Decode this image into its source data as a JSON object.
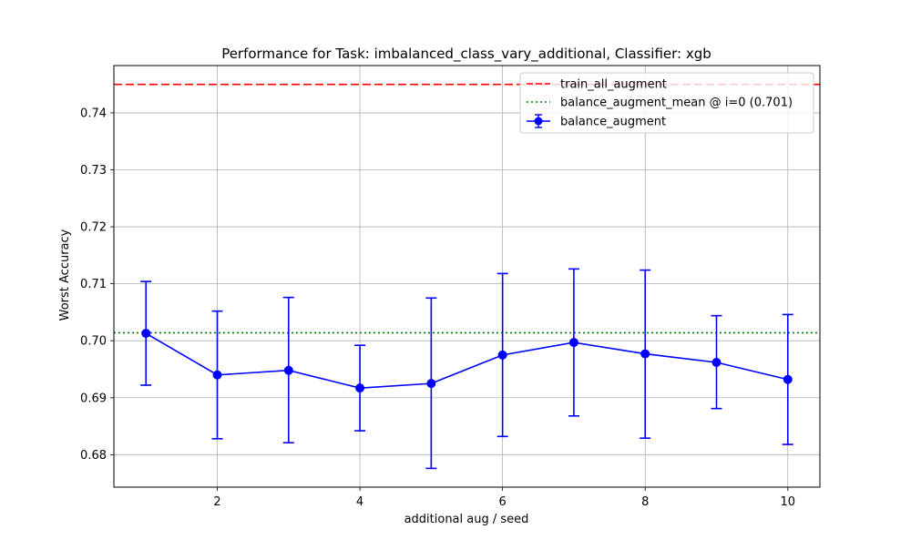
{
  "chart_data": {
    "type": "line",
    "title": "Performance for Task: imbalanced_class_vary_additional, Classifier: xgb",
    "xlabel": "additional aug / seed",
    "ylabel": "Worst Accuracy",
    "xlim": [
      0.55,
      10.45
    ],
    "ylim": [
      0.6743,
      0.7483
    ],
    "x_ticks": [
      2,
      4,
      6,
      8,
      10
    ],
    "x_tick_labels": [
      "2",
      "4",
      "6",
      "8",
      "10"
    ],
    "y_ticks": [
      0.68,
      0.69,
      0.7,
      0.71,
      0.72,
      0.73,
      0.74
    ],
    "y_tick_labels": [
      "0.68",
      "0.69",
      "0.70",
      "0.71",
      "0.72",
      "0.73",
      "0.74"
    ],
    "grid": true,
    "legend_position": "top-right",
    "series": [
      {
        "name": "balance_augment",
        "color": "#0000ff",
        "marker": "circle",
        "x": [
          1,
          2,
          3,
          4,
          5,
          6,
          7,
          8,
          9,
          10
        ],
        "y": [
          0.7013,
          0.694,
          0.6948,
          0.6917,
          0.6925,
          0.6975,
          0.6997,
          0.6977,
          0.6962,
          0.6932
        ],
        "err_low": [
          0.6922,
          0.6828,
          0.6821,
          0.6842,
          0.6776,
          0.6832,
          0.6868,
          0.6829,
          0.6881,
          0.6818
        ],
        "err_high": [
          0.7104,
          0.7052,
          0.7076,
          0.6992,
          0.7075,
          0.7118,
          0.7126,
          0.7124,
          0.7044,
          0.7046
        ]
      }
    ],
    "reference_lines": [
      {
        "name": "train_all_augment",
        "y": 0.745,
        "color": "#ff0000",
        "style": "dashed"
      },
      {
        "name": "balance_augment_mean @ i=0 (0.701)",
        "y": 0.7014,
        "color": "#008000",
        "style": "dotted"
      }
    ],
    "legend_order": [
      "train_all_augment",
      "balance_augment_mean @ i=0 (0.701)",
      "balance_augment"
    ]
  }
}
